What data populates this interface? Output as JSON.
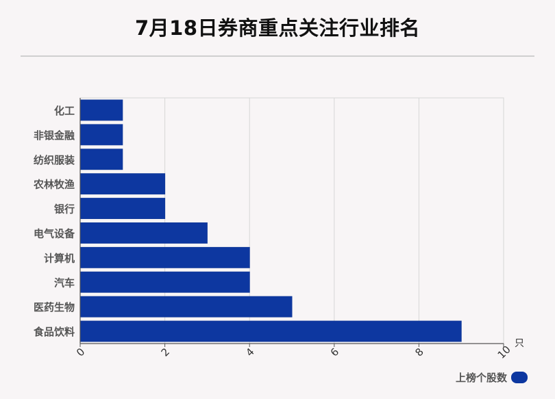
{
  "title": "7月18日券商重点关注行业排名",
  "legend": {
    "label": "上榜个股数",
    "color": "#0d37a0"
  },
  "chart_data": {
    "type": "bar",
    "orientation": "horizontal",
    "title": "7月18日券商重点关注行业排名",
    "categories": [
      "化工",
      "非银金融",
      "纺织服装",
      "农林牧渔",
      "银行",
      "电气设备",
      "计算机",
      "汽车",
      "医药生物",
      "食品饮料"
    ],
    "series": [
      {
        "name": "上榜个股数",
        "values": [
          1,
          1,
          1,
          2,
          2,
          3,
          4,
          4,
          5,
          9
        ],
        "color": "#0d37a0"
      }
    ],
    "xlim": [
      0,
      10
    ],
    "x_ticks": [
      "0",
      "2",
      "4",
      "6",
      "8",
      "10"
    ],
    "x_unit": "只",
    "grid": true,
    "legend_position": "bottom-right"
  }
}
